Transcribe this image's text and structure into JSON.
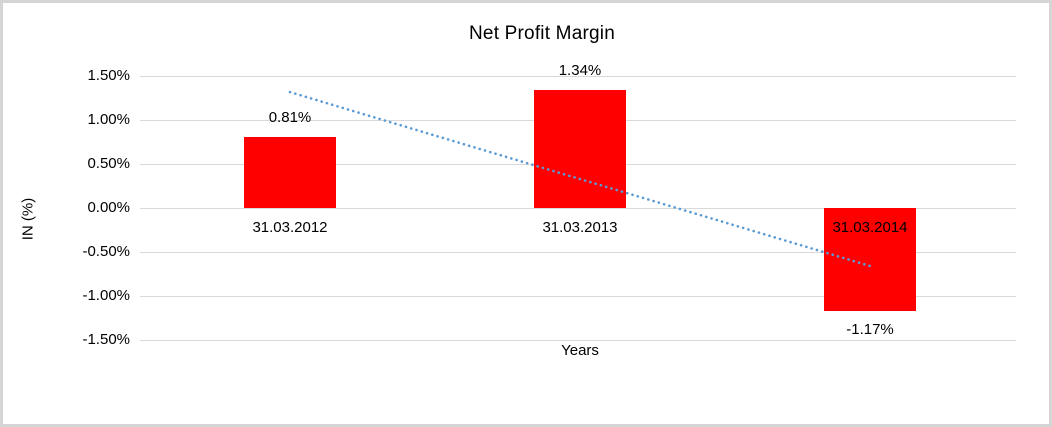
{
  "chart_data": {
    "type": "bar",
    "title": "Net Profit Margin",
    "xlabel": "Years",
    "ylabel": "IN (%)",
    "categories": [
      "31.03.2012",
      "31.03.2013",
      "31.03.2014"
    ],
    "series": [
      {
        "name": "Net Profit Margin",
        "values": [
          0.81,
          1.34,
          -1.17
        ]
      }
    ],
    "data_labels": [
      "0.81%",
      "1.34%",
      "-1.17%"
    ],
    "y_ticks": [
      "1.50%",
      "1.00%",
      "0.50%",
      "0.00%",
      "-0.50%",
      "-1.00%",
      "-1.50%"
    ],
    "y_tick_values": [
      1.5,
      1.0,
      0.5,
      0.0,
      -0.5,
      -1.0,
      -1.5
    ],
    "ylim": [
      -1.5,
      1.5
    ],
    "grid": true,
    "legend": "none",
    "bar_color": "#ff0000",
    "gridline_color": "#d9d9d9",
    "trendline": {
      "type": "linear",
      "style": "dotted",
      "color": "#5b9bd5",
      "start_value": 1.32,
      "end_value": -0.66
    }
  }
}
